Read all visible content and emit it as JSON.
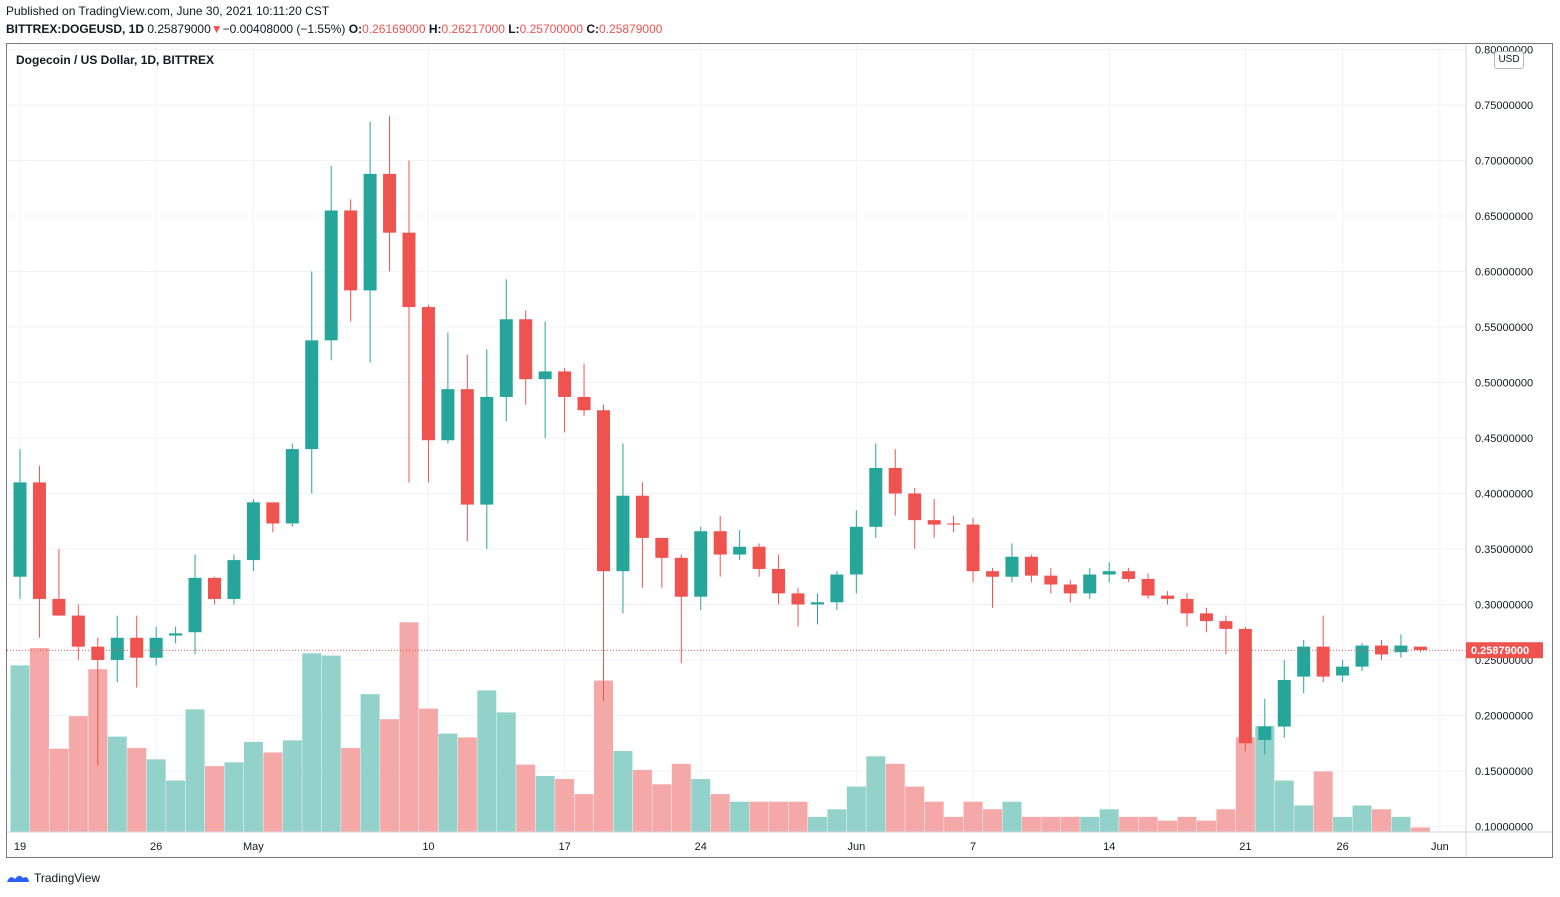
{
  "header": {
    "published": "Published on TradingView.com, June 30, 2021 10:11:20 CST",
    "symbol": "BITTREX:DOGEUSD, 1D",
    "last": "0.25879000",
    "change_arrow": "▼",
    "change": "−0.00408000 (−1.55%)",
    "o_label": "O:",
    "o_value": "0.26169000",
    "h_label": "H:",
    "h_value": "0.26217000",
    "l_label": "L:",
    "l_value": "0.25700000",
    "c_label": "C:",
    "c_value": "0.25879000"
  },
  "footer": {
    "brand": "TradingView"
  },
  "chart_data": {
    "type": "candlestick",
    "title": "Dogecoin / US Dollar, 1D, BITTREX",
    "currency": "USD",
    "colors": {
      "up": "#26a69a",
      "down": "#ef5350",
      "vol_up": "#93d1cb",
      "vol_down": "#f5a8a8",
      "grid": "#f0f3fa",
      "price_line": "#ef5350"
    },
    "y_axis": {
      "range": [
        0.095,
        0.805
      ],
      "ticks": [
        0.8,
        0.75,
        0.7,
        0.65,
        0.6,
        0.55,
        0.5,
        0.45,
        0.4,
        0.35,
        0.3,
        0.25,
        0.2,
        0.15,
        0.1
      ],
      "tick_labels": [
        "0.80000000",
        "0.75000000",
        "0.70000000",
        "0.65000000",
        "0.60000000",
        "0.55000000",
        "0.50000000",
        "0.45000000",
        "0.40000000",
        "0.35000000",
        "0.30000000",
        "0.25000000",
        "0.20000000",
        "0.15000000",
        "0.10000000"
      ]
    },
    "x_labels": [
      {
        "label": "19",
        "index": 0
      },
      {
        "label": "26",
        "index": 7
      },
      {
        "label": "May",
        "index": 12
      },
      {
        "label": "10",
        "index": 21
      },
      {
        "label": "17",
        "index": 28
      },
      {
        "label": "24",
        "index": 35
      },
      {
        "label": "Jun",
        "index": 43
      },
      {
        "label": "7",
        "index": 49
      },
      {
        "label": "14",
        "index": 56
      },
      {
        "label": "21",
        "index": 63
      },
      {
        "label": "26",
        "index": 68
      },
      {
        "label": "Jun",
        "index": 73
      }
    ],
    "last_price": 0.25879,
    "last_price_label": "0.25879000",
    "volume_range": [
      0,
      2.8
    ],
    "candles": [
      {
        "o": 0.325,
        "h": 0.44,
        "l": 0.305,
        "c": 0.41,
        "v": 2.2
      },
      {
        "o": 0.41,
        "h": 0.425,
        "l": 0.27,
        "c": 0.305,
        "v": 2.43
      },
      {
        "o": 0.305,
        "h": 0.35,
        "l": 0.29,
        "c": 0.29,
        "v": 1.1
      },
      {
        "o": 0.29,
        "h": 0.3,
        "l": 0.25,
        "c": 0.262,
        "v": 1.53
      },
      {
        "o": 0.262,
        "h": 0.27,
        "l": 0.155,
        "c": 0.25,
        "v": 2.15
      },
      {
        "o": 0.25,
        "h": 0.29,
        "l": 0.23,
        "c": 0.27,
        "v": 1.26
      },
      {
        "o": 0.27,
        "h": 0.29,
        "l": 0.225,
        "c": 0.252,
        "v": 1.11
      },
      {
        "o": 0.252,
        "h": 0.28,
        "l": 0.245,
        "c": 0.27,
        "v": 0.96
      },
      {
        "o": 0.272,
        "h": 0.28,
        "l": 0.265,
        "c": 0.274,
        "v": 0.68
      },
      {
        "o": 0.275,
        "h": 0.345,
        "l": 0.255,
        "c": 0.324,
        "v": 1.62
      },
      {
        "o": 0.324,
        "h": 0.325,
        "l": 0.3,
        "c": 0.305,
        "v": 0.87
      },
      {
        "o": 0.305,
        "h": 0.345,
        "l": 0.3,
        "c": 0.34,
        "v": 0.92
      },
      {
        "o": 0.34,
        "h": 0.395,
        "l": 0.33,
        "c": 0.392,
        "v": 1.19
      },
      {
        "o": 0.392,
        "h": 0.39,
        "l": 0.365,
        "c": 0.373,
        "v": 1.05
      },
      {
        "o": 0.373,
        "h": 0.445,
        "l": 0.37,
        "c": 0.44,
        "v": 1.21
      },
      {
        "o": 0.44,
        "h": 0.6,
        "l": 0.4,
        "c": 0.538,
        "v": 2.36
      },
      {
        "o": 0.538,
        "h": 0.695,
        "l": 0.52,
        "c": 0.655,
        "v": 2.33
      },
      {
        "o": 0.655,
        "h": 0.665,
        "l": 0.555,
        "c": 0.583,
        "v": 1.11
      },
      {
        "o": 0.583,
        "h": 0.735,
        "l": 0.518,
        "c": 0.688,
        "v": 1.82
      },
      {
        "o": 0.688,
        "h": 0.74,
        "l": 0.6,
        "c": 0.635,
        "v": 1.49
      },
      {
        "o": 0.635,
        "h": 0.7,
        "l": 0.41,
        "c": 0.568,
        "v": 2.77
      },
      {
        "o": 0.568,
        "h": 0.57,
        "l": 0.41,
        "c": 0.448,
        "v": 1.63
      },
      {
        "o": 0.448,
        "h": 0.545,
        "l": 0.445,
        "c": 0.494,
        "v": 1.3
      },
      {
        "o": 0.494,
        "h": 0.525,
        "l": 0.357,
        "c": 0.39,
        "v": 1.25
      },
      {
        "o": 0.39,
        "h": 0.53,
        "l": 0.35,
        "c": 0.487,
        "v": 1.87
      },
      {
        "o": 0.487,
        "h": 0.593,
        "l": 0.465,
        "c": 0.557,
        "v": 1.58
      },
      {
        "o": 0.557,
        "h": 0.565,
        "l": 0.48,
        "c": 0.503,
        "v": 0.89
      },
      {
        "o": 0.503,
        "h": 0.555,
        "l": 0.45,
        "c": 0.51,
        "v": 0.74
      },
      {
        "o": 0.51,
        "h": 0.513,
        "l": 0.455,
        "c": 0.487,
        "v": 0.7
      },
      {
        "o": 0.487,
        "h": 0.517,
        "l": 0.47,
        "c": 0.475,
        "v": 0.5
      },
      {
        "o": 0.475,
        "h": 0.48,
        "l": 0.213,
        "c": 0.33,
        "v": 2.0
      },
      {
        "o": 0.33,
        "h": 0.445,
        "l": 0.292,
        "c": 0.398,
        "v": 1.07
      },
      {
        "o": 0.398,
        "h": 0.41,
        "l": 0.315,
        "c": 0.36,
        "v": 0.82
      },
      {
        "o": 0.36,
        "h": 0.36,
        "l": 0.315,
        "c": 0.342,
        "v": 0.63
      },
      {
        "o": 0.342,
        "h": 0.345,
        "l": 0.247,
        "c": 0.307,
        "v": 0.9
      },
      {
        "o": 0.307,
        "h": 0.37,
        "l": 0.295,
        "c": 0.366,
        "v": 0.7
      },
      {
        "o": 0.366,
        "h": 0.38,
        "l": 0.325,
        "c": 0.345,
        "v": 0.5
      },
      {
        "o": 0.345,
        "h": 0.367,
        "l": 0.34,
        "c": 0.352,
        "v": 0.4
      },
      {
        "o": 0.352,
        "h": 0.355,
        "l": 0.325,
        "c": 0.332,
        "v": 0.4
      },
      {
        "o": 0.332,
        "h": 0.345,
        "l": 0.3,
        "c": 0.31,
        "v": 0.4
      },
      {
        "o": 0.31,
        "h": 0.315,
        "l": 0.28,
        "c": 0.3,
        "v": 0.4
      },
      {
        "o": 0.3,
        "h": 0.31,
        "l": 0.282,
        "c": 0.302,
        "v": 0.2
      },
      {
        "o": 0.302,
        "h": 0.33,
        "l": 0.295,
        "c": 0.327,
        "v": 0.3
      },
      {
        "o": 0.327,
        "h": 0.385,
        "l": 0.31,
        "c": 0.37,
        "v": 0.6
      },
      {
        "o": 0.37,
        "h": 0.445,
        "l": 0.36,
        "c": 0.423,
        "v": 1.0
      },
      {
        "o": 0.423,
        "h": 0.44,
        "l": 0.38,
        "c": 0.4,
        "v": 0.9
      },
      {
        "o": 0.4,
        "h": 0.405,
        "l": 0.35,
        "c": 0.376,
        "v": 0.6
      },
      {
        "o": 0.376,
        "h": 0.395,
        "l": 0.36,
        "c": 0.372,
        "v": 0.4
      },
      {
        "o": 0.373,
        "h": 0.38,
        "l": 0.365,
        "c": 0.372,
        "v": 0.2
      },
      {
        "o": 0.372,
        "h": 0.378,
        "l": 0.32,
        "c": 0.33,
        "v": 0.4
      },
      {
        "o": 0.33,
        "h": 0.333,
        "l": 0.297,
        "c": 0.325,
        "v": 0.3
      },
      {
        "o": 0.325,
        "h": 0.355,
        "l": 0.32,
        "c": 0.343,
        "v": 0.4
      },
      {
        "o": 0.343,
        "h": 0.345,
        "l": 0.32,
        "c": 0.326,
        "v": 0.2
      },
      {
        "o": 0.326,
        "h": 0.333,
        "l": 0.31,
        "c": 0.318,
        "v": 0.2
      },
      {
        "o": 0.318,
        "h": 0.322,
        "l": 0.302,
        "c": 0.31,
        "v": 0.2
      },
      {
        "o": 0.31,
        "h": 0.333,
        "l": 0.305,
        "c": 0.327,
        "v": 0.2
      },
      {
        "o": 0.327,
        "h": 0.338,
        "l": 0.32,
        "c": 0.33,
        "v": 0.3
      },
      {
        "o": 0.33,
        "h": 0.333,
        "l": 0.32,
        "c": 0.323,
        "v": 0.2
      },
      {
        "o": 0.323,
        "h": 0.328,
        "l": 0.305,
        "c": 0.308,
        "v": 0.2
      },
      {
        "o": 0.308,
        "h": 0.312,
        "l": 0.3,
        "c": 0.305,
        "v": 0.15
      },
      {
        "o": 0.305,
        "h": 0.31,
        "l": 0.28,
        "c": 0.292,
        "v": 0.2
      },
      {
        "o": 0.292,
        "h": 0.297,
        "l": 0.275,
        "c": 0.285,
        "v": 0.15
      },
      {
        "o": 0.285,
        "h": 0.29,
        "l": 0.255,
        "c": 0.278,
        "v": 0.3
      },
      {
        "o": 0.278,
        "h": 0.28,
        "l": 0.168,
        "c": 0.175,
        "v": 1.25
      },
      {
        "o": 0.178,
        "h": 0.215,
        "l": 0.165,
        "c": 0.19,
        "v": 1.4
      },
      {
        "o": 0.19,
        "h": 0.25,
        "l": 0.18,
        "c": 0.232,
        "v": 0.68
      },
      {
        "o": 0.235,
        "h": 0.268,
        "l": 0.22,
        "c": 0.262,
        "v": 0.35
      },
      {
        "o": 0.262,
        "h": 0.29,
        "l": 0.23,
        "c": 0.235,
        "v": 0.8
      },
      {
        "o": 0.236,
        "h": 0.25,
        "l": 0.23,
        "c": 0.244,
        "v": 0.2
      },
      {
        "o": 0.244,
        "h": 0.265,
        "l": 0.24,
        "c": 0.263,
        "v": 0.35
      },
      {
        "o": 0.263,
        "h": 0.268,
        "l": 0.25,
        "c": 0.255,
        "v": 0.3
      },
      {
        "o": 0.257,
        "h": 0.273,
        "l": 0.252,
        "c": 0.263,
        "v": 0.2
      },
      {
        "o": 0.262,
        "h": 0.262,
        "l": 0.257,
        "c": 0.259,
        "v": 0.06
      }
    ]
  }
}
